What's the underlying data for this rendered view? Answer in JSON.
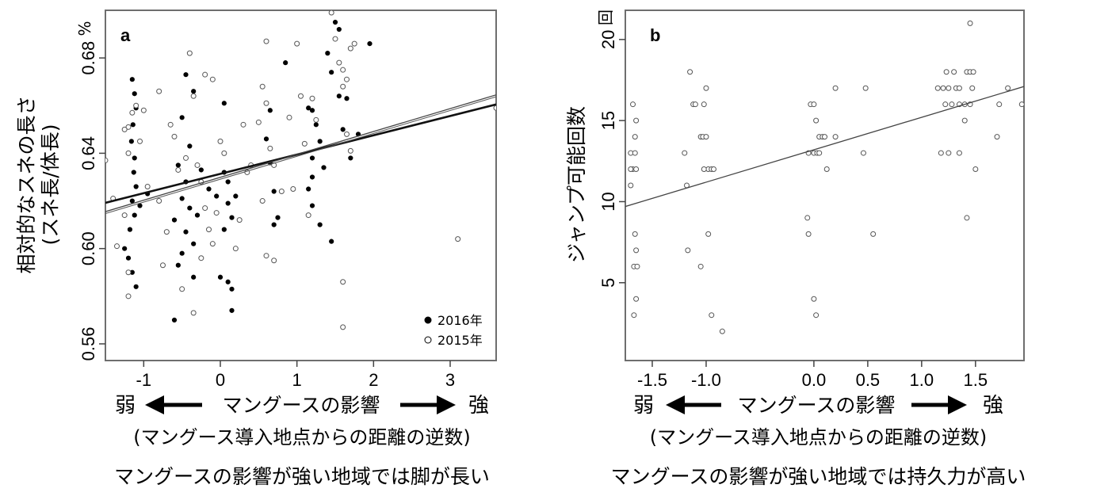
{
  "chart_data": [
    {
      "type": "scatter",
      "panel_label": "a",
      "ylabel_line1": "相対的なスネの長さ",
      "ylabel_line2": "(スネ長/体長)",
      "y_unit": "%",
      "xlim": [
        -1.5,
        3.6
      ],
      "ylim": [
        0.553,
        0.7
      ],
      "x_ticks": [
        -1,
        0,
        1,
        2,
        3
      ],
      "x_tick_labels": [
        "-1",
        "0",
        "1",
        "2",
        "3"
      ],
      "y_ticks": [
        0.56,
        0.6,
        0.64,
        0.68
      ],
      "y_tick_labels": [
        "0.56",
        "0.60",
        "0.64",
        "0.68"
      ],
      "legend": [
        {
          "name": "2016年",
          "marker": "filled"
        },
        {
          "name": "2015年",
          "marker": "open"
        }
      ],
      "legend_position": "bottom-right",
      "series": [
        {
          "name": "2016年",
          "marker": "filled",
          "points": [
            [
              -1.15,
              0.671
            ],
            [
              -1.12,
              0.665
            ],
            [
              -1.1,
              0.659
            ],
            [
              -1.14,
              0.652
            ],
            [
              -1.16,
              0.645
            ],
            [
              -1.12,
              0.638
            ],
            [
              -1.13,
              0.632
            ],
            [
              -1.1,
              0.626
            ],
            [
              -1.15,
              0.62
            ],
            [
              -1.12,
              0.614
            ],
            [
              -1.18,
              0.608
            ],
            [
              -1.2,
              0.596
            ],
            [
              -1.15,
              0.59
            ],
            [
              -1.1,
              0.584
            ],
            [
              -1.25,
              0.6
            ],
            [
              -1.05,
              0.618
            ],
            [
              -0.95,
              0.623
            ],
            [
              -0.6,
              0.57
            ],
            [
              -0.45,
              0.673
            ],
            [
              -0.35,
              0.666
            ],
            [
              -0.5,
              0.655
            ],
            [
              -0.4,
              0.643
            ],
            [
              -0.55,
              0.635
            ],
            [
              -0.45,
              0.628
            ],
            [
              -0.5,
              0.621
            ],
            [
              -0.4,
              0.617
            ],
            [
              -0.6,
              0.612
            ],
            [
              -0.45,
              0.607
            ],
            [
              -0.35,
              0.602
            ],
            [
              -0.5,
              0.598
            ],
            [
              -0.55,
              0.593
            ],
            [
              -0.35,
              0.588
            ],
            [
              -0.25,
              0.633
            ],
            [
              -0.15,
              0.625
            ],
            [
              -0.3,
              0.614
            ],
            [
              -0.05,
              0.622
            ],
            [
              0.0,
              0.588
            ],
            [
              0.05,
              0.661
            ],
            [
              0.05,
              0.632
            ],
            [
              0.1,
              0.628
            ],
            [
              0.1,
              0.619
            ],
            [
              0.15,
              0.613
            ],
            [
              0.05,
              0.608
            ],
            [
              0.1,
              0.586
            ],
            [
              0.15,
              0.583
            ],
            [
              0.15,
              0.574
            ],
            [
              0.2,
              0.622
            ],
            [
              0.6,
              0.646
            ],
            [
              0.65,
              0.636
            ],
            [
              0.7,
              0.624
            ],
            [
              0.75,
              0.613
            ],
            [
              0.85,
              0.678
            ],
            [
              0.65,
              0.658
            ],
            [
              0.7,
              0.61
            ],
            [
              1.15,
              0.659
            ],
            [
              1.2,
              0.658
            ],
            [
              1.25,
              0.652
            ],
            [
              1.3,
              0.645
            ],
            [
              1.2,
              0.638
            ],
            [
              1.35,
              0.634
            ],
            [
              1.2,
              0.63
            ],
            [
              1.15,
              0.625
            ],
            [
              1.2,
              0.618
            ],
            [
              1.3,
              0.61
            ],
            [
              1.45,
              0.603
            ],
            [
              1.4,
              0.682
            ],
            [
              1.5,
              0.695
            ],
            [
              1.55,
              0.692
            ],
            [
              1.45,
              0.674
            ],
            [
              1.55,
              0.664
            ],
            [
              1.65,
              0.663
            ],
            [
              1.6,
              0.65
            ],
            [
              1.7,
              0.638
            ],
            [
              1.8,
              0.648
            ],
            [
              1.95,
              0.686
            ]
          ]
        },
        {
          "name": "2015年",
          "marker": "open",
          "points": [
            [
              -1.5,
              0.637
            ],
            [
              -1.4,
              0.621
            ],
            [
              -1.35,
              0.601
            ],
            [
              -1.25,
              0.614
            ],
            [
              -1.2,
              0.64
            ],
            [
              -1.2,
              0.651
            ],
            [
              -1.15,
              0.657
            ],
            [
              -1.1,
              0.66
            ],
            [
              -1.05,
              0.645
            ],
            [
              -1.0,
              0.658
            ],
            [
              -0.95,
              0.626
            ],
            [
              -1.2,
              0.59
            ],
            [
              -1.2,
              0.58
            ],
            [
              -1.25,
              0.65
            ],
            [
              -0.8,
              0.62
            ],
            [
              -0.75,
              0.593
            ],
            [
              -0.7,
              0.607
            ],
            [
              -0.8,
              0.666
            ],
            [
              -0.65,
              0.652
            ],
            [
              -0.6,
              0.647
            ],
            [
              -0.55,
              0.633
            ],
            [
              -0.45,
              0.638
            ],
            [
              -0.4,
              0.682
            ],
            [
              -0.35,
              0.664
            ],
            [
              -0.3,
              0.635
            ],
            [
              -0.25,
              0.628
            ],
            [
              -0.2,
              0.617
            ],
            [
              -0.15,
              0.608
            ],
            [
              -0.1,
              0.602
            ],
            [
              -0.05,
              0.615
            ],
            [
              -0.35,
              0.573
            ],
            [
              -0.5,
              0.583
            ],
            [
              -0.25,
              0.596
            ],
            [
              -0.2,
              0.673
            ],
            [
              -0.1,
              0.671
            ],
            [
              0.0,
              0.645
            ],
            [
              0.05,
              0.64
            ],
            [
              0.2,
              0.6
            ],
            [
              0.25,
              0.612
            ],
            [
              0.3,
              0.652
            ],
            [
              0.35,
              0.632
            ],
            [
              0.4,
              0.635
            ],
            [
              0.5,
              0.653
            ],
            [
              0.6,
              0.687
            ],
            [
              0.55,
              0.668
            ],
            [
              0.6,
              0.661
            ],
            [
              0.65,
              0.642
            ],
            [
              0.7,
              0.635
            ],
            [
              0.55,
              0.62
            ],
            [
              0.6,
              0.597
            ],
            [
              0.7,
              0.595
            ],
            [
              0.8,
              0.624
            ],
            [
              0.9,
              0.655
            ],
            [
              0.95,
              0.625
            ],
            [
              1.0,
              0.686
            ],
            [
              1.05,
              0.664
            ],
            [
              1.1,
              0.644
            ],
            [
              1.15,
              0.614
            ],
            [
              1.2,
              0.663
            ],
            [
              1.25,
              0.654
            ],
            [
              1.45,
              0.699
            ],
            [
              1.5,
              0.688
            ],
            [
              1.55,
              0.678
            ],
            [
              1.6,
              0.675
            ],
            [
              1.65,
              0.671
            ],
            [
              1.7,
              0.684
            ],
            [
              1.75,
              0.686
            ],
            [
              1.6,
              0.668
            ],
            [
              1.65,
              0.648
            ],
            [
              1.7,
              0.641
            ],
            [
              1.6,
              0.586
            ],
            [
              1.6,
              0.567
            ],
            [
              3.1,
              0.604
            ],
            [
              3.6,
              0.659
            ]
          ]
        }
      ],
      "fit_lines": [
        {
          "series": "2016年",
          "x": [
            -1.5,
            3.6
          ],
          "y": [
            0.6192,
            0.6605
          ]
        },
        {
          "series": "2015年",
          "x": [
            -1.5,
            3.6
          ],
          "y": [
            0.6155,
            0.6645
          ]
        }
      ],
      "x_annotation": {
        "left": "弱",
        "center": "マングースの影響",
        "right": "強"
      },
      "x_subtitle": "(マングース導入地点からの距離の逆数)",
      "caption": "マングースの影響が強い地域では脚が長い"
    },
    {
      "type": "scatter",
      "panel_label": "b",
      "ylabel": "ジャンプ可能回数",
      "y_unit": "回",
      "xlim": [
        -1.75,
        1.95
      ],
      "ylim": [
        0.2,
        21.8
      ],
      "x_ticks": [
        -1.5,
        -1.0,
        0.0,
        0.5,
        1.0,
        1.5
      ],
      "x_tick_labels": [
        "-1.5",
        "-1.0",
        "0.0",
        "0.5",
        "1.0",
        "1.5"
      ],
      "y_ticks": [
        5,
        10,
        15,
        20
      ],
      "y_tick_labels": [
        "5",
        "10",
        "15",
        "20"
      ],
      "series": [
        {
          "name": "",
          "marker": "open",
          "points": [
            [
              -1.68,
              16
            ],
            [
              -1.65,
              15
            ],
            [
              -1.66,
              14
            ],
            [
              -1.7,
              13
            ],
            [
              -1.66,
              13
            ],
            [
              -1.68,
              12
            ],
            [
              -1.65,
              12
            ],
            [
              -1.7,
              12
            ],
            [
              -1.7,
              11
            ],
            [
              -1.66,
              8
            ],
            [
              -1.65,
              7
            ],
            [
              -1.67,
              6
            ],
            [
              -1.64,
              6
            ],
            [
              -1.65,
              4
            ],
            [
              -1.67,
              3
            ],
            [
              -1.2,
              13
            ],
            [
              -1.18,
              11
            ],
            [
              -1.17,
              7
            ],
            [
              -1.15,
              18
            ],
            [
              -1.12,
              16
            ],
            [
              -1.1,
              16
            ],
            [
              -1.05,
              14
            ],
            [
              -1.03,
              14
            ],
            [
              -1.02,
              16
            ],
            [
              -1.0,
              17
            ],
            [
              -1.0,
              14
            ],
            [
              -0.98,
              12
            ],
            [
              -0.95,
              12
            ],
            [
              -1.02,
              12
            ],
            [
              -0.93,
              12
            ],
            [
              -1.05,
              6
            ],
            [
              -0.98,
              8
            ],
            [
              -0.95,
              3
            ],
            [
              -0.85,
              2
            ],
            [
              -0.05,
              8
            ],
            [
              -0.06,
              9
            ],
            [
              -0.05,
              13
            ],
            [
              -0.03,
              16
            ],
            [
              0.0,
              16
            ],
            [
              0.0,
              13
            ],
            [
              0.02,
              15
            ],
            [
              0.03,
              13
            ],
            [
              0.05,
              13
            ],
            [
              0.05,
              14
            ],
            [
              0.08,
              14
            ],
            [
              0.1,
              14
            ],
            [
              0.12,
              12
            ],
            [
              0.2,
              17
            ],
            [
              0.2,
              14
            ],
            [
              0.0,
              4
            ],
            [
              0.02,
              3
            ],
            [
              0.48,
              17
            ],
            [
              0.46,
              13
            ],
            [
              0.55,
              8
            ],
            [
              1.15,
              17
            ],
            [
              1.2,
              17
            ],
            [
              1.22,
              16
            ],
            [
              1.23,
              18
            ],
            [
              1.25,
              17
            ],
            [
              1.28,
              16
            ],
            [
              1.3,
              18
            ],
            [
              1.32,
              17
            ],
            [
              1.35,
              17
            ],
            [
              1.35,
              16
            ],
            [
              1.18,
              13
            ],
            [
              1.25,
              13
            ],
            [
              1.35,
              13
            ],
            [
              1.4,
              16
            ],
            [
              1.4,
              15
            ],
            [
              1.42,
              18
            ],
            [
              1.45,
              18
            ],
            [
              1.48,
              18
            ],
            [
              1.47,
              17
            ],
            [
              1.45,
              16
            ],
            [
              1.45,
              21
            ],
            [
              1.5,
              12
            ],
            [
              1.42,
              9
            ],
            [
              1.7,
              14
            ],
            [
              1.72,
              16
            ],
            [
              1.8,
              17
            ],
            [
              1.93,
              16
            ]
          ]
        }
      ],
      "fit_lines": [
        {
          "series": "",
          "x": [
            -1.75,
            1.95
          ],
          "y": [
            9.7,
            17.1
          ]
        }
      ],
      "x_annotation": {
        "left": "弱",
        "center": "マングースの影響",
        "right": "強"
      },
      "x_subtitle": "(マングース導入地点からの距離の逆数)",
      "caption": "マングースの影響が強い地域では持久力が高い"
    }
  ]
}
